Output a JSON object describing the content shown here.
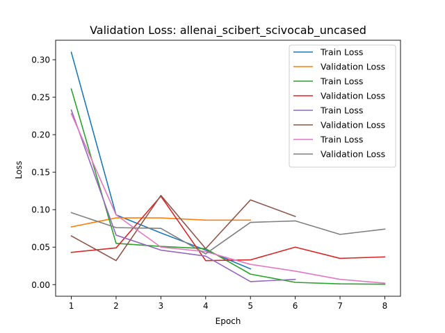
{
  "chart_data": {
    "type": "line",
    "title": "Validation Loss: allenai_scibert_scivocab_uncased",
    "xlabel": "Epoch",
    "ylabel": "Loss",
    "xlim": [
      0.65,
      8.35
    ],
    "ylim": [
      -0.0155,
      0.326
    ],
    "xticks": [
      "1",
      "2",
      "3",
      "4",
      "5",
      "6",
      "7",
      "8"
    ],
    "yticks": [
      "0.00",
      "0.05",
      "0.10",
      "0.15",
      "0.20",
      "0.25",
      "0.30"
    ],
    "grid": false,
    "legend_position": "top-right",
    "series": [
      {
        "name": "Train Loss",
        "color": "#1f77b4",
        "x": [
          1,
          2,
          3,
          4,
          5
        ],
        "y": [
          0.31,
          0.093,
          0.069,
          0.046,
          0.021
        ]
      },
      {
        "name": "Validation Loss",
        "color": "#ff7f0e",
        "x": [
          1,
          2,
          3,
          4,
          5
        ],
        "y": [
          0.077,
          0.089,
          0.089,
          0.086,
          0.086
        ]
      },
      {
        "name": "Train Loss",
        "color": "#2ca02c",
        "x": [
          1,
          2,
          3,
          4,
          5,
          6,
          7,
          8
        ],
        "y": [
          0.261,
          0.055,
          0.051,
          0.048,
          0.014,
          0.003,
          0.001,
          0.0005
        ]
      },
      {
        "name": "Validation Loss",
        "color": "#d62728",
        "x": [
          1,
          2,
          3,
          4,
          5,
          6,
          7,
          8
        ],
        "y": [
          0.043,
          0.049,
          0.118,
          0.032,
          0.033,
          0.05,
          0.035,
          0.037
        ]
      },
      {
        "name": "Train Loss",
        "color": "#9467bd",
        "x": [
          1,
          2,
          3,
          4,
          5,
          6
        ],
        "y": [
          0.233,
          0.066,
          0.046,
          0.038,
          0.004,
          0.007
        ]
      },
      {
        "name": "Validation Loss",
        "color": "#8c564b",
        "x": [
          1,
          2,
          3,
          4,
          5,
          6
        ],
        "y": [
          0.065,
          0.032,
          0.119,
          0.048,
          0.113,
          0.091
        ]
      },
      {
        "name": "Train Loss",
        "color": "#e377c2",
        "x": [
          1,
          2,
          3,
          4,
          5,
          6,
          7,
          8
        ],
        "y": [
          0.228,
          0.093,
          0.05,
          0.044,
          0.027,
          0.018,
          0.007,
          0.002
        ]
      },
      {
        "name": "Validation Loss",
        "color": "#7f7f7f",
        "x": [
          1,
          2,
          3,
          4,
          5,
          6,
          7,
          8
        ],
        "y": [
          0.096,
          0.076,
          0.075,
          0.041,
          0.083,
          0.085,
          0.067,
          0.074
        ]
      }
    ]
  }
}
